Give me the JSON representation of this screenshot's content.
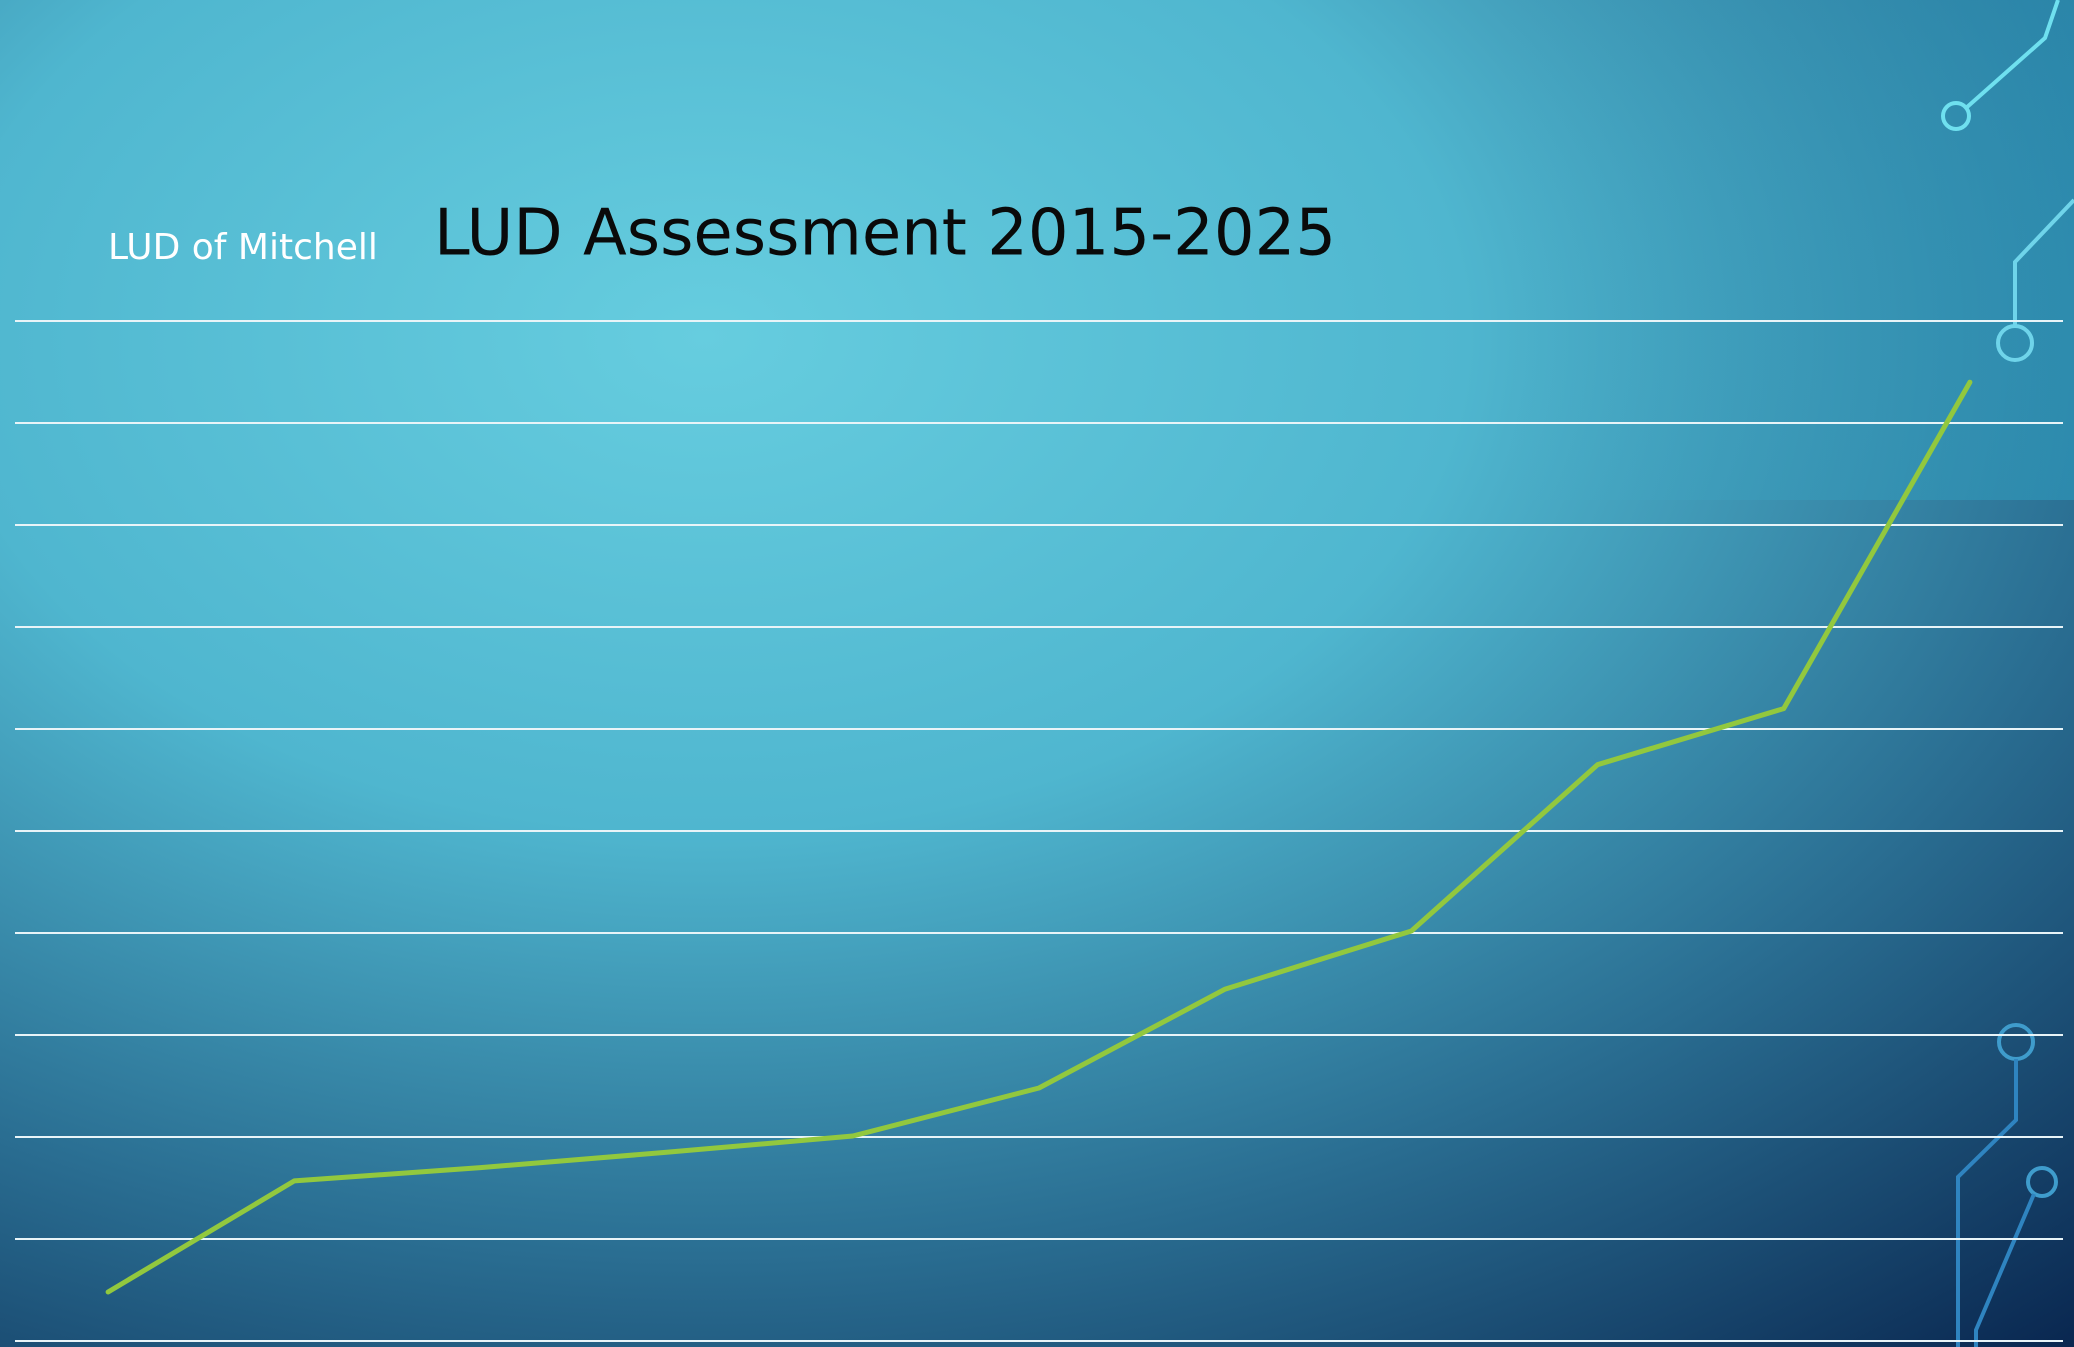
{
  "chart_data": {
    "type": "line",
    "title": "LUD Assessment 2015-2025",
    "subtitle": "LUD of Mitchell",
    "categories": [
      null,
      null,
      null,
      null,
      null,
      null,
      null,
      null,
      null,
      null,
      null
    ],
    "series": [
      {
        "name": null,
        "color": "#92c83e",
        "values": [
          0.48,
          1.57,
          1.7,
          1.85,
          2.01,
          2.48,
          3.45,
          4.02,
          5.65,
          6.2,
          9.4
        ]
      }
    ],
    "ylim": [
      0,
      10
    ],
    "yticks": [
      0,
      1,
      2,
      3,
      4,
      5,
      6,
      7,
      8,
      9,
      10
    ],
    "grid": true
  }
}
